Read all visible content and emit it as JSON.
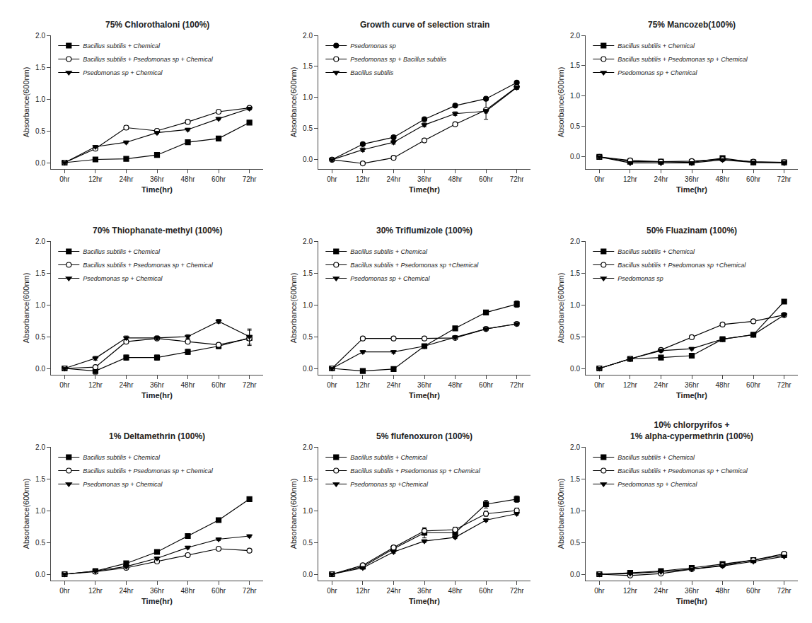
{
  "chart_data": [
    {
      "type": "line",
      "title": "75% Chlorothaloni (100%)",
      "xlabel": "Time(hr)",
      "ylabel": "Absorbance(600nm)",
      "categories": [
        "0hr",
        "12hr",
        "24hr",
        "36hr",
        "48hr",
        "60hr",
        "72hr"
      ],
      "ylim": [
        -0.1,
        2.0
      ],
      "yticks": [
        {
          "value": 0.0,
          "label": "0.0"
        },
        0.5,
        {
          "value": 1.0,
          "label": "1.0"
        },
        1.5,
        {
          "value": 2.0,
          "label": "2.0"
        }
      ],
      "grid": false,
      "legend": "upper left",
      "series": [
        {
          "name": "Bacillus subtilis + Chemical",
          "color": "black",
          "marker": "square",
          "values": [
            0.0,
            0.05,
            0.06,
            0.12,
            0.32,
            0.38,
            0.63
          ],
          "yerr": [
            0.0,
            0.01,
            0.01,
            0.02,
            0.02,
            0.02,
            0.02
          ]
        },
        {
          "name": "Bacillus subtilis + Psedomonas sp + Chemical",
          "color": "black",
          "marker": "circle-open",
          "values": [
            0.0,
            0.22,
            0.55,
            0.5,
            0.64,
            0.8,
            0.86
          ],
          "yerr": [
            0.0,
            0.02,
            0.03,
            0.03,
            0.03,
            0.02,
            0.02
          ]
        },
        {
          "name": "Psedomonas sp + Chemical",
          "color": "black",
          "marker": "triangle-down",
          "values": [
            0.0,
            0.25,
            0.32,
            0.47,
            0.52,
            0.69,
            0.85
          ],
          "yerr": [
            0.0,
            0.02,
            0.02,
            0.02,
            0.02,
            0.02,
            0.02
          ]
        }
      ]
    },
    {
      "type": "line",
      "title": "Growth curve of selection strain",
      "xlabel": "Time(hr)",
      "ylabel": "Absorbance(600nm)",
      "categories": [
        "0hr",
        "12hr",
        "24hr",
        "36hr",
        "48hr",
        "60hr",
        "72hr"
      ],
      "ylim": [
        -0.15,
        2.0
      ],
      "yticks": [
        {
          "value": 0.0,
          "label": "0.0"
        },
        0.5,
        {
          "value": 1.0,
          "label": "1.0"
        },
        1.5,
        {
          "value": 2.0,
          "label": "2.0"
        }
      ],
      "grid": false,
      "legend": "upper left",
      "series": [
        {
          "name": "Psedomonas sp",
          "color": "black",
          "marker": "circle",
          "values": [
            0.0,
            0.25,
            0.36,
            0.65,
            0.87,
            0.98,
            1.24
          ],
          "yerr": [
            0.0,
            0.02,
            0.02,
            0.02,
            0.02,
            0.02,
            0.02
          ]
        },
        {
          "name": "Psedomonas sp + Bacillus subtilis",
          "color": "black",
          "marker": "circle-open",
          "values": [
            0.0,
            -0.06,
            0.03,
            0.31,
            0.57,
            0.8,
            1.17
          ],
          "yerr": [
            0.0,
            0.02,
            0.02,
            0.02,
            0.02,
            0.15,
            0.02
          ]
        },
        {
          "name": "Bacillus subtilis",
          "color": "black",
          "marker": "triangle-down",
          "values": [
            0.0,
            0.16,
            0.28,
            0.56,
            0.74,
            0.78,
            1.16
          ],
          "yerr": [
            0.0,
            0.03,
            0.03,
            0.03,
            0.03,
            0.03,
            0.03
          ]
        }
      ]
    },
    {
      "type": "line",
      "title": "75% Mancozeb(100%)",
      "xlabel": "Time(hr)",
      "ylabel": "Absorbance(600nm)",
      "categories": [
        "0hr",
        "12hr",
        "24hr",
        "36hr",
        "48hr",
        "60hr",
        "72hr"
      ],
      "ylim": [
        -0.2,
        2.0
      ],
      "yticks": [
        {
          "value": 0.0,
          "label": "0.0"
        },
        0.5,
        {
          "value": 1.0,
          "label": "1.0"
        },
        1.5,
        {
          "value": 2.0,
          "label": "2.0"
        }
      ],
      "grid": false,
      "legend": "upper left",
      "series": [
        {
          "name": "Bacillus subtilis + Chemical",
          "color": "black",
          "marker": "square",
          "values": [
            0.0,
            -0.08,
            -0.08,
            -0.09,
            -0.02,
            -0.09,
            -0.09
          ],
          "yerr": [
            0.0,
            0.01,
            0.01,
            0.01,
            0.02,
            0.01,
            0.01
          ]
        },
        {
          "name": "Bacillus subtilis + Psedomonas sp + Chemical",
          "color": "black",
          "marker": "circle-open",
          "values": [
            0.0,
            -0.06,
            -0.08,
            -0.07,
            -0.04,
            -0.08,
            -0.09
          ],
          "yerr": [
            0.0,
            0.01,
            0.01,
            0.01,
            0.01,
            0.01,
            0.01
          ]
        },
        {
          "name": "Psedomonas sp + Chemical",
          "color": "black",
          "marker": "triangle-down",
          "values": [
            0.0,
            -0.1,
            -0.1,
            -0.1,
            -0.05,
            -0.09,
            -0.1
          ],
          "yerr": [
            0.0,
            0.01,
            0.01,
            0.01,
            0.01,
            0.01,
            0.01
          ]
        }
      ]
    },
    {
      "type": "line",
      "title": "70% Thiophanate-methyl (100%)",
      "xlabel": "Time(hr)",
      "ylabel": "Absorbance(600nm)",
      "categories": [
        "0hr",
        "12hr",
        "24hr",
        "36hr",
        "48hr",
        "60hr",
        "72hr"
      ],
      "ylim": [
        -0.1,
        2.0
      ],
      "yticks": [
        {
          "value": 0.0,
          "label": "0.0"
        },
        0.5,
        {
          "value": 1.0,
          "label": "1.0"
        },
        1.5,
        {
          "value": 2.0,
          "label": "2.0"
        }
      ],
      "grid": false,
      "legend": "upper left",
      "series": [
        {
          "name": "Bacillus subtilis + Chemical",
          "color": "black",
          "marker": "square",
          "values": [
            0.0,
            -0.04,
            0.17,
            0.17,
            0.26,
            0.35,
            0.48
          ],
          "yerr": [
            0.0,
            0.05,
            0.04,
            0.04,
            0.04,
            0.04,
            0.12
          ]
        },
        {
          "name": "Bacillus subtilis + Psedomonas sp + Chemical",
          "color": "black",
          "marker": "circle-open",
          "values": [
            0.0,
            0.02,
            0.42,
            0.47,
            0.42,
            0.37,
            0.47
          ],
          "yerr": [
            0.0,
            0.02,
            0.02,
            0.02,
            0.02,
            0.02,
            0.02
          ]
        },
        {
          "name": "Psedomonas sp + Chemical",
          "color": "black",
          "marker": "triangle-down",
          "values": [
            0.0,
            0.16,
            0.48,
            0.48,
            0.5,
            0.74,
            0.5
          ],
          "yerr": [
            0.0,
            0.03,
            0.03,
            0.03,
            0.03,
            0.03,
            0.12
          ]
        }
      ]
    },
    {
      "type": "line",
      "title": "30% Triflumizole (100%)",
      "xlabel": "Time(hr)",
      "ylabel": "Absorbance(600nm)",
      "categories": [
        "0hr",
        "12hr",
        "24hr",
        "36hr",
        "48hr",
        "60hr",
        "72hr"
      ],
      "ylim": [
        -0.1,
        2.0
      ],
      "yticks": [
        {
          "value": 0.0,
          "label": "0.0"
        },
        0.5,
        {
          "value": 1.0,
          "label": "1.0"
        },
        1.5,
        {
          "value": 2.0,
          "label": "2.0"
        }
      ],
      "grid": false,
      "legend": "upper left",
      "series": [
        {
          "name": "Bacillus subtilis + Chemical",
          "color": "black",
          "marker": "square",
          "values": [
            0.0,
            -0.04,
            -0.01,
            0.35,
            0.63,
            0.88,
            1.01
          ],
          "yerr": [
            0.0,
            0.01,
            0.02,
            0.02,
            0.03,
            0.03,
            0.05
          ]
        },
        {
          "name": "Bacillus subtilis + Psedomonas sp +Chemical",
          "color": "black",
          "marker": "circle-open",
          "values": [
            0.0,
            0.47,
            0.47,
            0.47,
            0.48,
            0.62,
            0.7
          ],
          "yerr": [
            0.0,
            0.02,
            0.02,
            0.02,
            0.02,
            0.02,
            0.02
          ]
        },
        {
          "name": "Psedomonas sp + Chemical",
          "color": "black",
          "marker": "triangle-down",
          "values": [
            0.0,
            0.26,
            0.26,
            0.35,
            0.49,
            0.62,
            0.7
          ],
          "yerr": [
            0.0,
            0.02,
            0.02,
            0.02,
            0.02,
            0.02,
            0.02
          ]
        }
      ]
    },
    {
      "type": "line",
      "title": "50% Fluazinam (100%)",
      "xlabel": "Time(hr)",
      "ylabel": "Absorbance(600nm)",
      "categories": [
        "0hr",
        "12hr",
        "24hr",
        "36hr",
        "48hr",
        "60hr",
        "72hr"
      ],
      "ylim": [
        -0.1,
        2.0
      ],
      "yticks": [
        {
          "value": 0.0,
          "label": "0.0"
        },
        0.5,
        {
          "value": 1.0,
          "label": "1.0"
        },
        1.5,
        {
          "value": 2.0,
          "label": "2.0"
        }
      ],
      "grid": false,
      "legend": "upper left",
      "series": [
        {
          "name": "Bacillus subtilis + Chemical",
          "color": "black",
          "marker": "square",
          "values": [
            0.0,
            0.15,
            0.17,
            0.2,
            0.46,
            0.53,
            1.05
          ],
          "yerr": [
            0.0,
            0.02,
            0.02,
            0.02,
            0.03,
            0.03,
            0.03
          ]
        },
        {
          "name": "Bacillus subtilis + Psedomonas sp +Chemical",
          "color": "black",
          "marker": "circle-open",
          "values": [
            0.0,
            0.15,
            0.29,
            0.49,
            0.69,
            0.74,
            0.84
          ],
          "yerr": [
            0.0,
            0.02,
            0.02,
            0.02,
            0.02,
            0.03,
            0.03
          ]
        },
        {
          "name": "Psedomonas sp",
          "color": "black",
          "marker": "triangle-down",
          "values": [
            0.0,
            0.15,
            0.28,
            0.31,
            0.46,
            0.53,
            0.84
          ],
          "yerr": [
            0.0,
            0.02,
            0.02,
            0.02,
            0.02,
            0.02,
            0.03
          ]
        }
      ]
    },
    {
      "type": "line",
      "title": "1% Deltamethrin (100%)",
      "xlabel": "Time(hr)",
      "ylabel": "Absorbance(600nm)",
      "categories": [
        "0hr",
        "12hr",
        "24hr",
        "36hr",
        "48hr",
        "60hr",
        "72hr"
      ],
      "ylim": [
        -0.1,
        2.0
      ],
      "yticks": [
        {
          "value": 0.0,
          "label": "0.0"
        },
        0.5,
        {
          "value": 1.0,
          "label": "1.0"
        },
        1.5,
        {
          "value": 2.0,
          "label": "2.0"
        }
      ],
      "grid": false,
      "legend": "upper left",
      "series": [
        {
          "name": "Bacillus subtilis + Chemical",
          "color": "black",
          "marker": "square",
          "values": [
            0.0,
            0.05,
            0.17,
            0.35,
            0.6,
            0.85,
            1.18
          ],
          "yerr": [
            0.0,
            0.01,
            0.02,
            0.02,
            0.02,
            0.02,
            0.02
          ]
        },
        {
          "name": "Bacillus subtilis + Psedomonas sp + Chemical",
          "color": "black",
          "marker": "circle-open",
          "values": [
            0.0,
            0.04,
            0.1,
            0.2,
            0.3,
            0.4,
            0.37
          ],
          "yerr": [
            0.0,
            0.01,
            0.01,
            0.01,
            0.02,
            0.02,
            0.02
          ]
        },
        {
          "name": "Psedomonas sp + Chemical",
          "color": "black",
          "marker": "triangle-down",
          "values": [
            0.0,
            0.05,
            0.12,
            0.25,
            0.42,
            0.55,
            0.6
          ],
          "yerr": [
            0.0,
            0.01,
            0.02,
            0.02,
            0.02,
            0.02,
            0.02
          ]
        }
      ]
    },
    {
      "type": "line",
      "title": "5% flufenoxuron (100%)",
      "xlabel": "Time(hr)",
      "ylabel": "Absorbance(600nm)",
      "categories": [
        "0hr",
        "12hr",
        "24hr",
        "36hr",
        "48hr",
        "60hr",
        "72hr"
      ],
      "ylim": [
        -0.1,
        2.0
      ],
      "yticks": [
        {
          "value": 0.0,
          "label": "0.0"
        },
        0.5,
        {
          "value": 1.0,
          "label": "1.0"
        },
        1.5,
        {
          "value": 2.0,
          "label": "2.0"
        }
      ],
      "grid": false,
      "legend": "upper left",
      "series": [
        {
          "name": "Bacillus subtilis + Chemical",
          "color": "black",
          "marker": "square",
          "values": [
            0.0,
            0.12,
            0.4,
            0.65,
            0.65,
            1.1,
            1.18
          ],
          "yerr": [
            0.0,
            0.02,
            0.04,
            0.08,
            0.05,
            0.06,
            0.05
          ]
        },
        {
          "name": "Bacillus subtilis + Psedomonas sp + Chemical",
          "color": "black",
          "marker": "circle-open",
          "values": [
            0.0,
            0.14,
            0.42,
            0.68,
            0.7,
            0.95,
            1.0
          ],
          "yerr": [
            0.0,
            0.02,
            0.03,
            0.04,
            0.04,
            0.04,
            0.04
          ]
        },
        {
          "name": "Psedomonas sp +Chemical",
          "color": "black",
          "marker": "triangle-down",
          "values": [
            0.0,
            0.1,
            0.35,
            0.52,
            0.58,
            0.85,
            0.95
          ],
          "yerr": [
            0.0,
            0.02,
            0.02,
            0.02,
            0.02,
            0.02,
            0.02
          ]
        }
      ]
    },
    {
      "type": "line",
      "title": "10% chlorpyrifos +\n1% alpha-cypermethrin (100%)",
      "xlabel": "Time(hr)",
      "ylabel": "Absorbance(600nm)",
      "categories": [
        "0hr",
        "12hr",
        "24hr",
        "36hr",
        "48hr",
        "60hr",
        "72hr"
      ],
      "ylim": [
        -0.1,
        2.0
      ],
      "yticks": [
        {
          "value": 0.0,
          "label": "0.0"
        },
        0.5,
        {
          "value": 1.0,
          "label": "1.0"
        },
        1.5,
        {
          "value": 2.0,
          "label": "2.0"
        }
      ],
      "grid": false,
      "legend": "upper left",
      "series": [
        {
          "name": "Bacillus subtilis + Chemical",
          "color": "black",
          "marker": "square",
          "values": [
            0.0,
            0.02,
            0.05,
            0.1,
            0.16,
            0.22,
            0.3
          ],
          "yerr": [
            0.0,
            0.01,
            0.01,
            0.01,
            0.01,
            0.01,
            0.01
          ]
        },
        {
          "name": "Bacillus subtilis + Psedomonas sp + Chemical",
          "color": "black",
          "marker": "circle-open",
          "values": [
            0.0,
            -0.02,
            0.01,
            0.08,
            0.14,
            0.22,
            0.32
          ],
          "yerr": [
            0.0,
            0.01,
            0.01,
            0.01,
            0.01,
            0.01,
            0.01
          ]
        },
        {
          "name": "Psedomonas sp + Chemical",
          "color": "black",
          "marker": "triangle-down",
          "values": [
            0.0,
            0.01,
            0.04,
            0.08,
            0.13,
            0.2,
            0.28
          ],
          "yerr": [
            0.0,
            0.01,
            0.01,
            0.01,
            0.01,
            0.01,
            0.01
          ]
        }
      ]
    }
  ]
}
